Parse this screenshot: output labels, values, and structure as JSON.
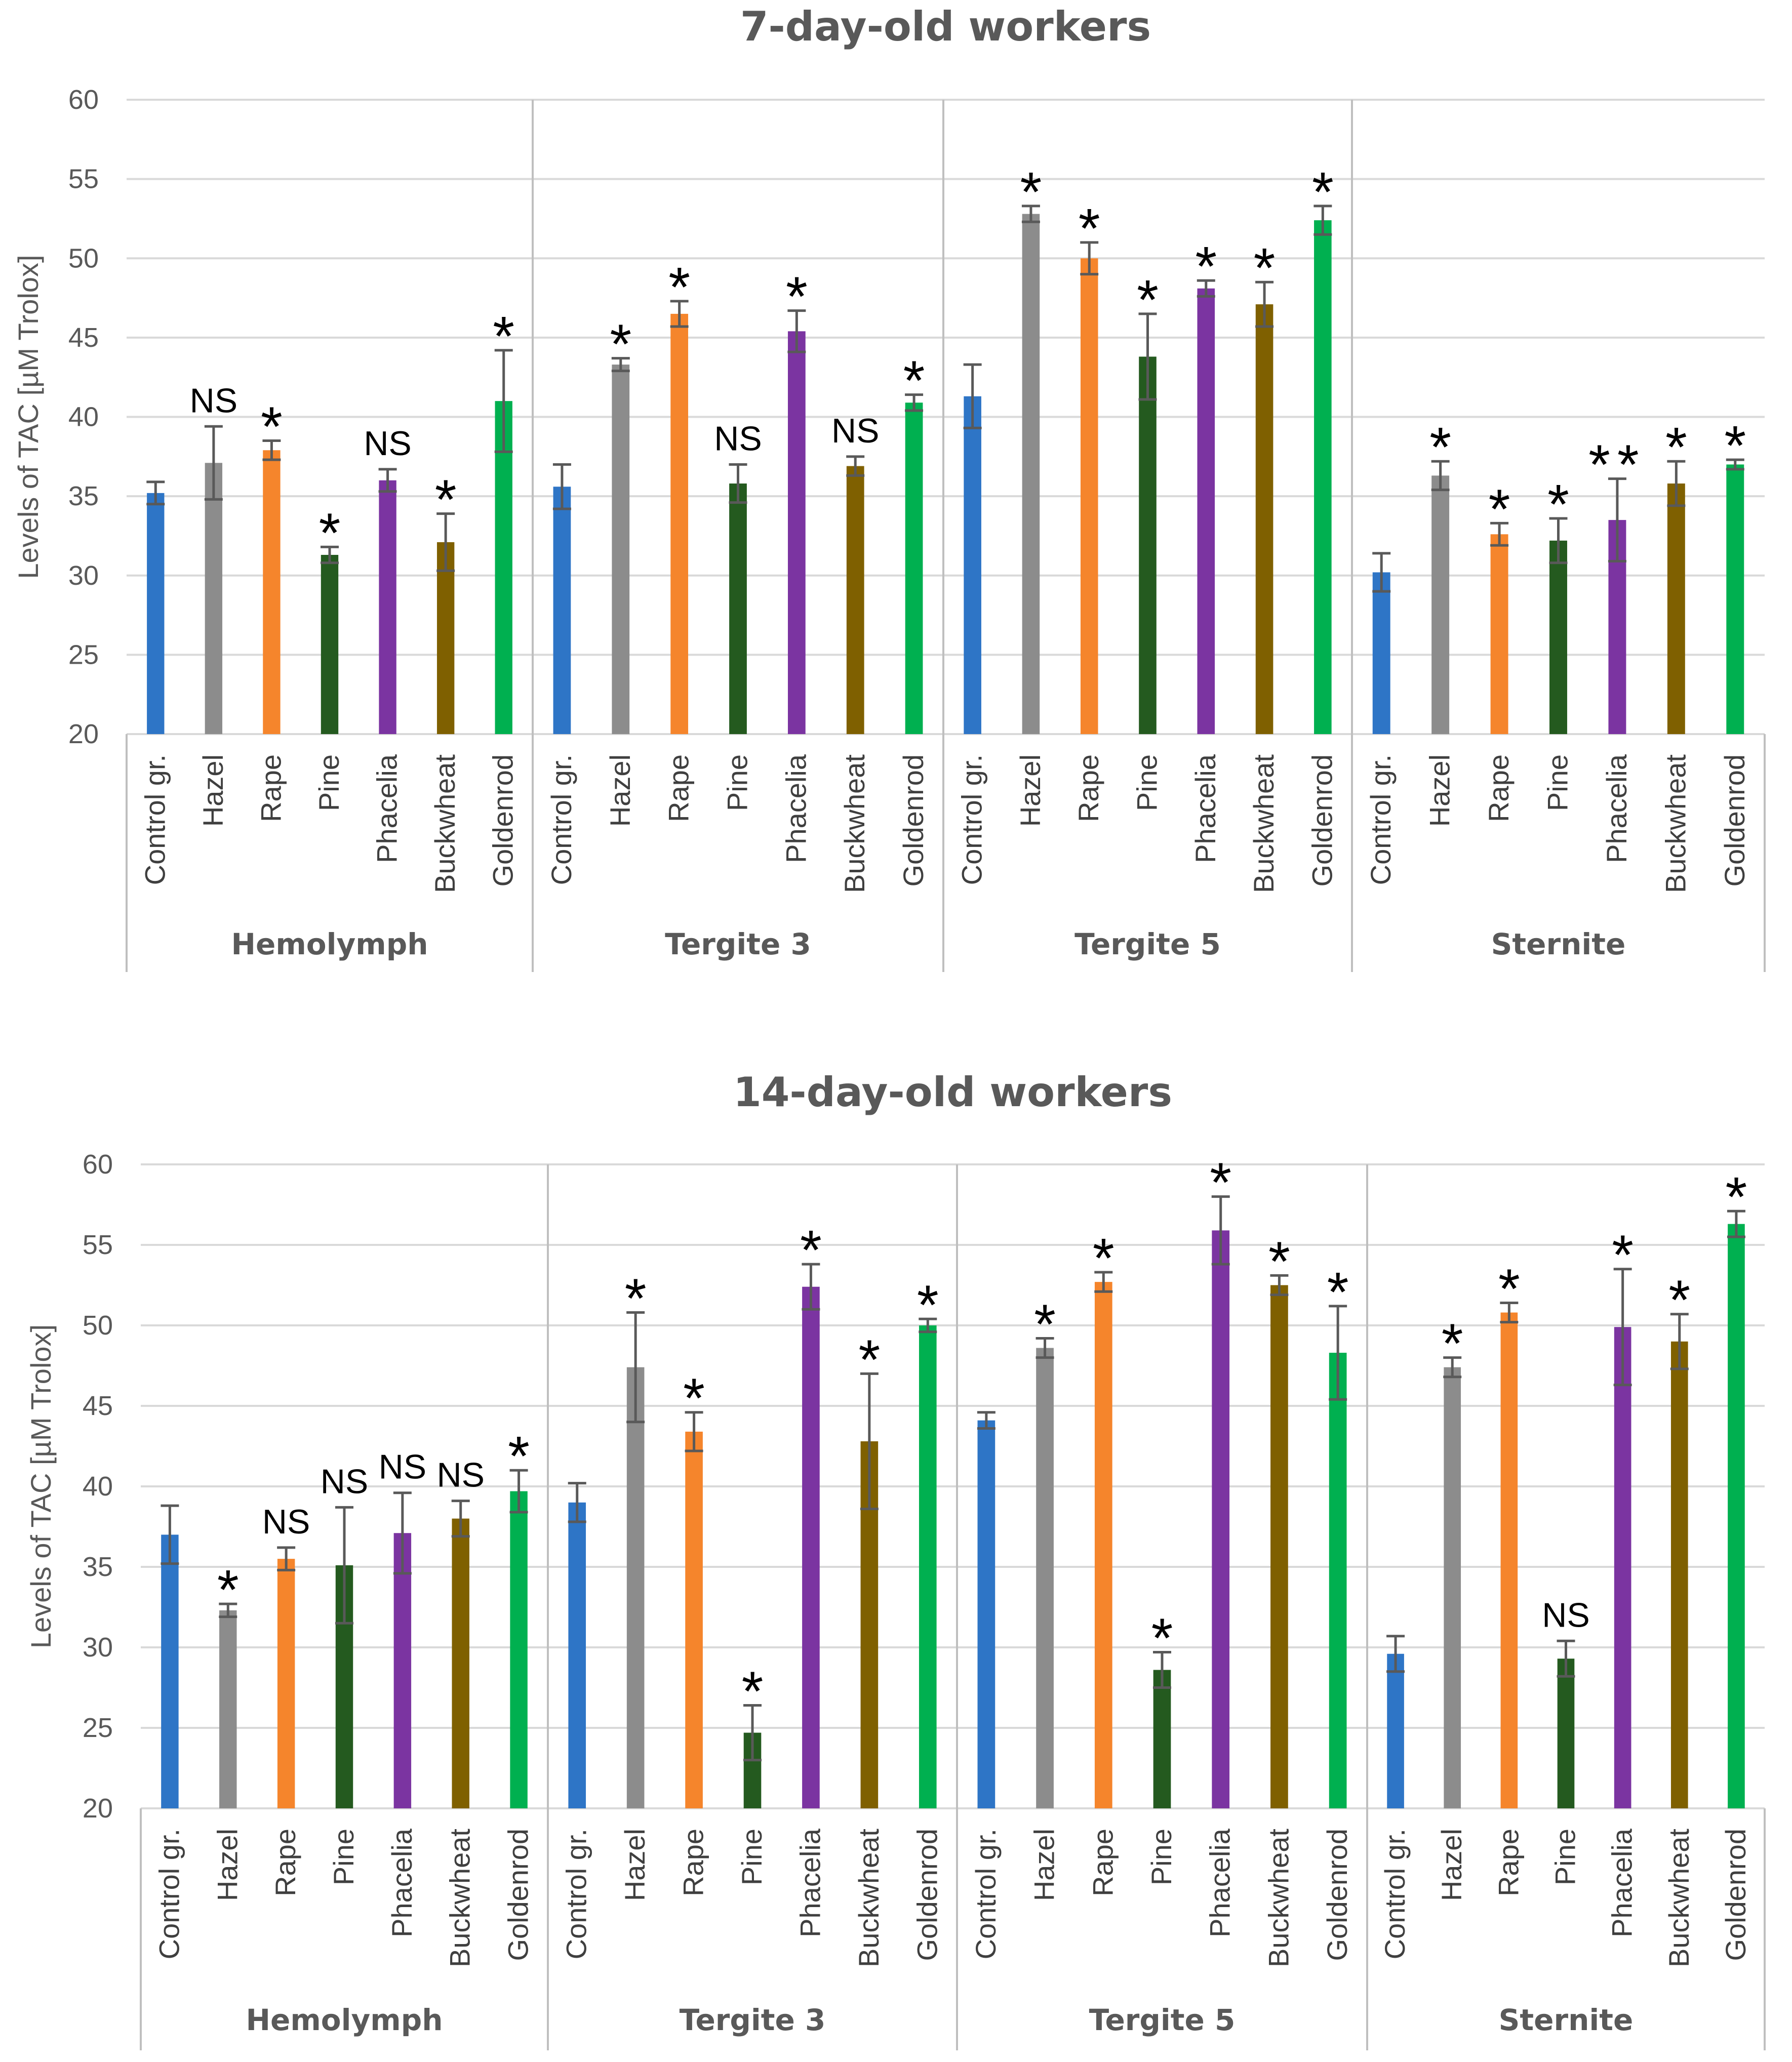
{
  "colors": {
    "Control gr.": "#2e75c6",
    "Hazel": "#8c8c8c",
    "Rape": "#f5852c",
    "Pine": "#245a1f",
    "Phacelia": "#7b34a1",
    "Buckwheat": "#7f6000",
    "Goldenrod": "#00b050",
    "grid": "#d9d9d9",
    "axis_text": "#595959",
    "highlight_star": "#1f8fcf"
  },
  "chart_data": [
    {
      "type": "bar",
      "title": "7-day-old workers",
      "ylabel": "Levels of TAC [µM Trolox]",
      "ylim": [
        20,
        60
      ],
      "yticks": [
        20,
        25,
        30,
        35,
        40,
        45,
        50,
        55,
        60
      ],
      "grid": true,
      "categories": [
        "Control gr.",
        "Hazel",
        "Rape",
        "Pine",
        "Phacelia",
        "Buckwheat",
        "Goldenrod"
      ],
      "groups": [
        {
          "name": "Hemolymph",
          "values": [
            35.2,
            37.1,
            37.9,
            31.3,
            36.0,
            32.1,
            41.0
          ],
          "errors": [
            0.7,
            2.3,
            0.6,
            0.5,
            0.7,
            1.8,
            3.2
          ],
          "labels": [
            "",
            "NS",
            "*",
            "*",
            "NS",
            "*",
            "*"
          ]
        },
        {
          "name": "Tergite 3",
          "values": [
            35.6,
            43.3,
            46.5,
            35.8,
            45.4,
            36.9,
            40.9
          ],
          "errors": [
            1.4,
            0.4,
            0.8,
            1.2,
            1.3,
            0.6,
            0.5
          ],
          "labels": [
            "",
            "*",
            "*",
            "NS",
            "*",
            "NS",
            "*"
          ]
        },
        {
          "name": "Tergite 5",
          "values": [
            41.3,
            52.8,
            50.0,
            43.8,
            48.1,
            47.1,
            52.4
          ],
          "errors": [
            2.0,
            0.5,
            1.0,
            2.7,
            0.5,
            1.4,
            0.9
          ],
          "labels": [
            "",
            "*",
            "*",
            "*",
            "*",
            "*",
            "*"
          ]
        },
        {
          "name": "Sternite",
          "values": [
            30.2,
            36.3,
            32.6,
            32.2,
            33.5,
            35.8,
            37.0
          ],
          "errors": [
            1.2,
            0.9,
            0.7,
            1.4,
            2.6,
            1.4,
            0.3
          ],
          "labels": [
            "",
            "*",
            "*",
            "*",
            "**",
            "*",
            "*"
          ]
        }
      ]
    },
    {
      "type": "bar",
      "title": "14-day-old workers",
      "ylabel": "Levels of TAC [µM Trolox]",
      "ylim": [
        20,
        60
      ],
      "yticks": [
        20,
        25,
        30,
        35,
        40,
        45,
        50,
        55,
        60
      ],
      "grid": true,
      "categories": [
        "Control gr.",
        "Hazel",
        "Rape",
        "Pine",
        "Phacelia",
        "Buckwheat",
        "Goldenrod"
      ],
      "groups": [
        {
          "name": "Hemolymph",
          "values": [
            37.0,
            32.3,
            35.5,
            35.1,
            37.1,
            38.0,
            39.7
          ],
          "errors": [
            1.8,
            0.4,
            0.7,
            3.6,
            2.5,
            1.1,
            1.3
          ],
          "labels": [
            "",
            "*",
            "NS",
            "NS",
            "NS",
            "NS",
            "*"
          ]
        },
        {
          "name": "Tergite 3",
          "values": [
            39.0,
            47.4,
            43.4,
            24.7,
            52.4,
            42.8,
            50.0
          ],
          "errors": [
            1.2,
            3.4,
            1.2,
            1.7,
            1.4,
            4.2,
            0.4
          ],
          "labels": [
            "",
            "*",
            "*",
            "*",
            "*",
            "*",
            "*"
          ]
        },
        {
          "name": "Tergite 5",
          "values": [
            44.1,
            48.6,
            52.7,
            28.6,
            55.9,
            52.5,
            48.3
          ],
          "errors": [
            0.5,
            0.6,
            0.6,
            1.1,
            2.1,
            0.6,
            2.9
          ],
          "labels": [
            "",
            "*",
            "*",
            "*",
            "*",
            "*",
            "*"
          ]
        },
        {
          "name": "Sternite",
          "values": [
            29.6,
            47.4,
            50.8,
            29.3,
            49.9,
            49.0,
            56.3
          ],
          "errors": [
            1.1,
            0.6,
            0.6,
            1.1,
            3.6,
            1.7,
            0.8
          ],
          "labels": [
            "",
            "*",
            "*",
            "NS",
            "*",
            "*",
            "*"
          ]
        }
      ]
    }
  ]
}
